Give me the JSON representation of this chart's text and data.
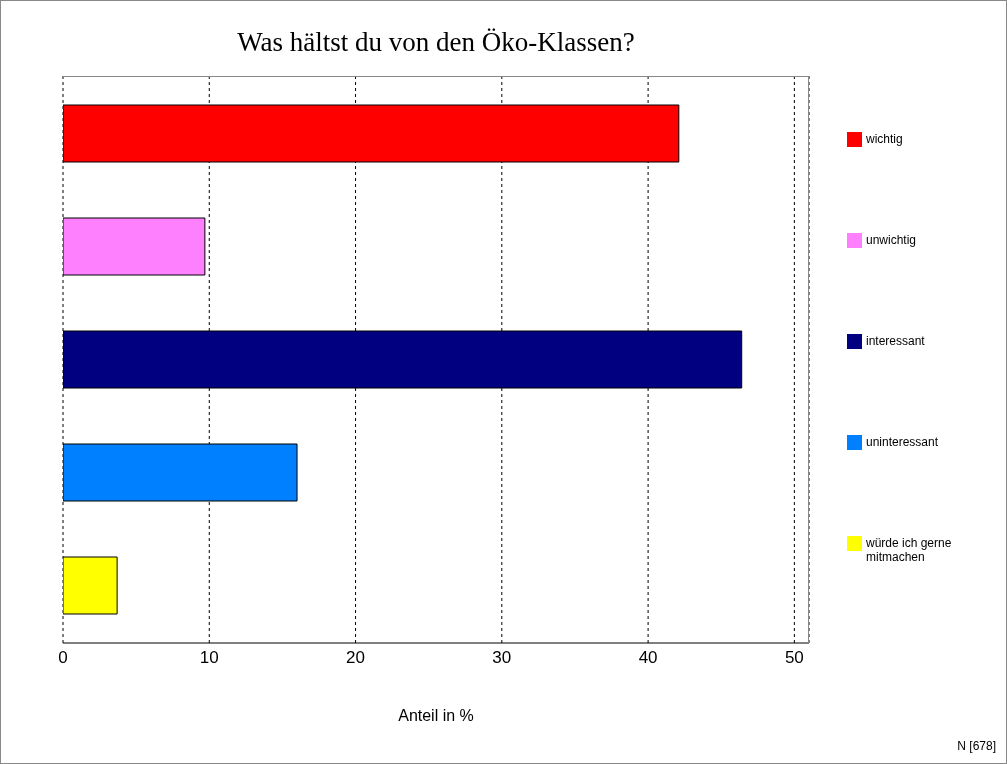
{
  "chart_data": {
    "type": "bar",
    "orientation": "horizontal",
    "title": "Was hältst du von den Öko-Klassen?",
    "xlabel": "Anteil in %",
    "categories": [
      null
    ],
    "series": [
      {
        "name": "wichtig",
        "color": "#ff0000",
        "values": [
          42.1
        ]
      },
      {
        "name": "unwichtig",
        "color": "#ff80ff",
        "values": [
          9.7
        ]
      },
      {
        "name": "interessant",
        "color": "#000080",
        "values": [
          46.4
        ]
      },
      {
        "name": "uninteressant",
        "color": "#0080ff",
        "values": [
          16.0
        ]
      },
      {
        "name": "würde ich gerne mitmachen",
        "color": "#ffff00",
        "values": [
          3.7
        ]
      }
    ],
    "xlim": [
      0,
      51
    ],
    "xticks": [
      0,
      10,
      20,
      30,
      40,
      50
    ],
    "grid": "x",
    "legend": "right",
    "tick_labels": "x",
    "annotations": [
      "N [678]"
    ]
  }
}
